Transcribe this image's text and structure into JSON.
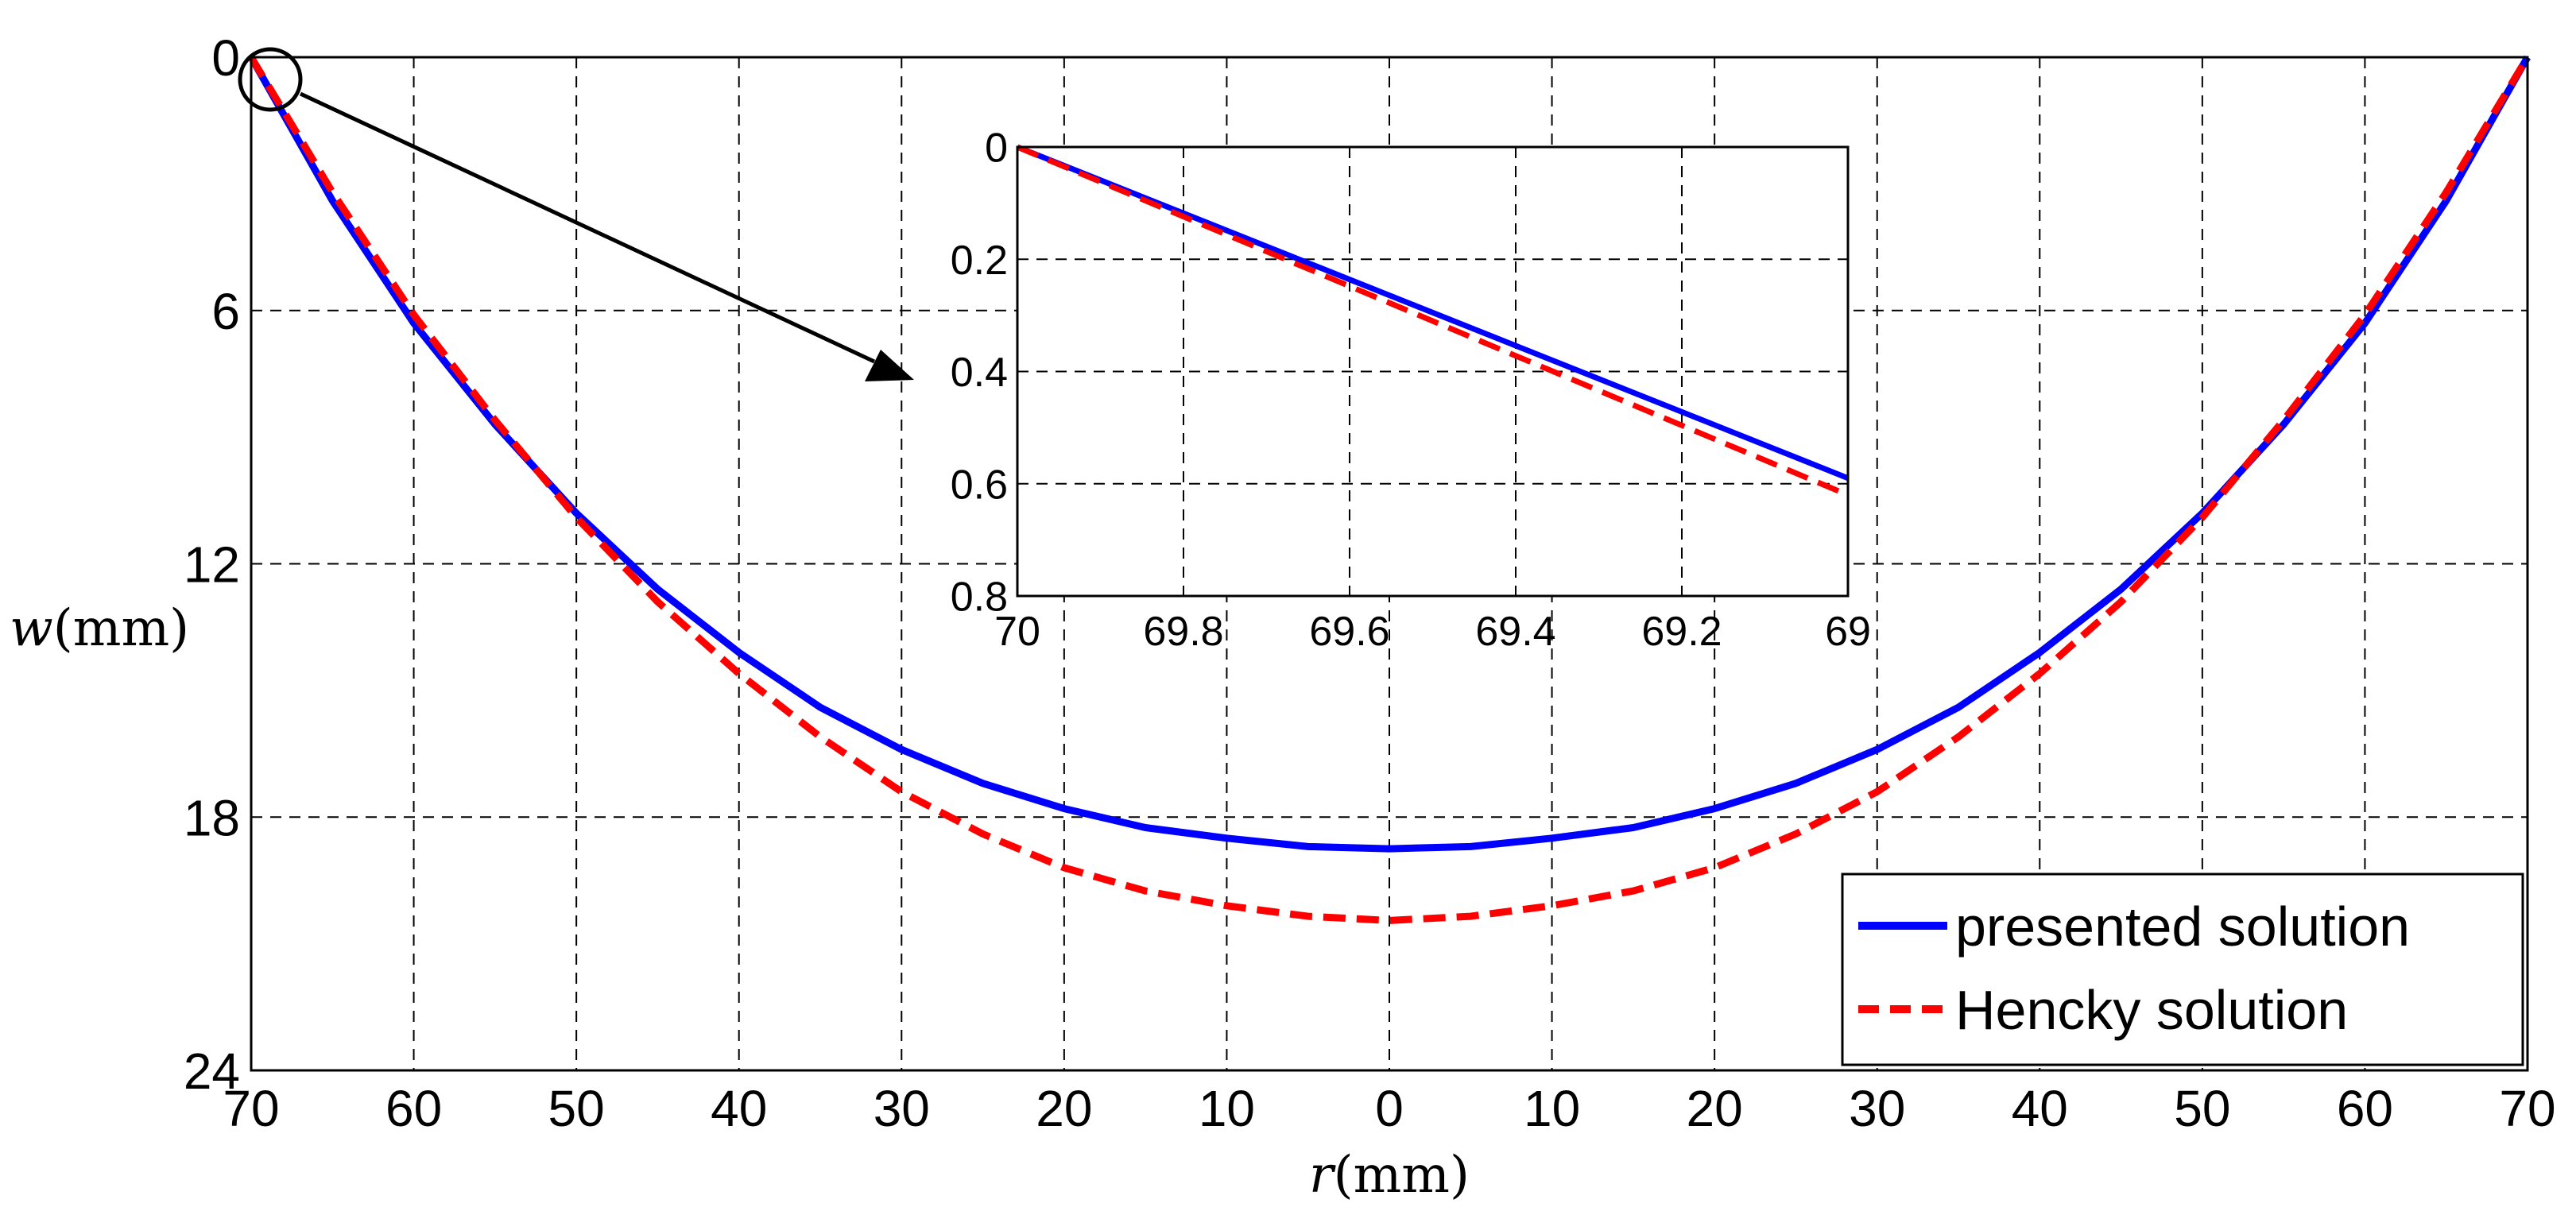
{
  "chart_data": {
    "type": "line",
    "xlabel_var": "r",
    "xlabel_unit": "(mm)",
    "ylabel_var": "w",
    "ylabel_unit": "(mm)",
    "x_tick_labels": [
      "70",
      "60",
      "50",
      "40",
      "30",
      "20",
      "10",
      "0",
      "10",
      "20",
      "30",
      "40",
      "50",
      "60",
      "70"
    ],
    "y_tick_labels": [
      "0",
      "6",
      "12",
      "18",
      "24"
    ],
    "xlim": [
      -70,
      70
    ],
    "ylim": [
      0,
      24
    ],
    "y_inverted": true,
    "grid": true,
    "legend": {
      "position": "bottom-right",
      "entries": [
        "presented solution",
        "Hencky solution"
      ]
    },
    "series": [
      {
        "name": "presented solution",
        "color": "#0000ff",
        "style": "solid",
        "x": [
          -70,
          -65,
          -60,
          -55,
          -50,
          -45,
          -40,
          -35,
          -30,
          -25,
          -20,
          -15,
          -10,
          -5,
          0,
          5,
          10,
          15,
          20,
          25,
          30,
          35,
          40,
          45,
          50,
          55,
          60,
          65,
          70
        ],
        "y": [
          0,
          3.4,
          6.3,
          8.7,
          10.8,
          12.6,
          14.1,
          15.4,
          16.4,
          17.2,
          17.8,
          18.25,
          18.5,
          18.7,
          18.75,
          18.7,
          18.5,
          18.25,
          17.8,
          17.2,
          16.4,
          15.4,
          14.1,
          12.6,
          10.8,
          8.7,
          6.3,
          3.4,
          0
        ]
      },
      {
        "name": "Hencky solution",
        "color": "#ff0000",
        "style": "dashed",
        "x": [
          -70,
          -65,
          -60,
          -55,
          -50,
          -45,
          -40,
          -35,
          -30,
          -25,
          -20,
          -15,
          -10,
          -5,
          0,
          5,
          10,
          15,
          20,
          25,
          30,
          35,
          40,
          45,
          50,
          55,
          60,
          65,
          70
        ],
        "y": [
          0,
          3.2,
          6.1,
          8.6,
          10.9,
          12.9,
          14.6,
          16.1,
          17.4,
          18.4,
          19.2,
          19.75,
          20.1,
          20.35,
          20.45,
          20.35,
          20.1,
          19.75,
          19.2,
          18.4,
          17.4,
          16.1,
          14.6,
          12.9,
          10.9,
          8.6,
          6.1,
          3.2,
          0
        ]
      }
    ],
    "inset": {
      "type": "line",
      "x_tick_labels": [
        "70",
        "69.8",
        "69.6",
        "69.4",
        "69.2",
        "69"
      ],
      "y_tick_labels": [
        "0",
        "0.2",
        "0.4",
        "0.6",
        "0.8"
      ],
      "xlim": [
        70,
        69
      ],
      "ylim": [
        0,
        0.8
      ],
      "y_inverted": true,
      "grid": true,
      "series": [
        {
          "name": "presented solution",
          "color": "#0000ff",
          "style": "solid",
          "x": [
            70,
            69
          ],
          "y": [
            0,
            0.59
          ]
        },
        {
          "name": "Hencky solution",
          "color": "#ff0000",
          "style": "dashed",
          "x": [
            70,
            69
          ],
          "y": [
            0,
            0.62
          ]
        }
      ],
      "annotation": "zoom of region near r = 70 mm (circle with arrow)"
    }
  }
}
